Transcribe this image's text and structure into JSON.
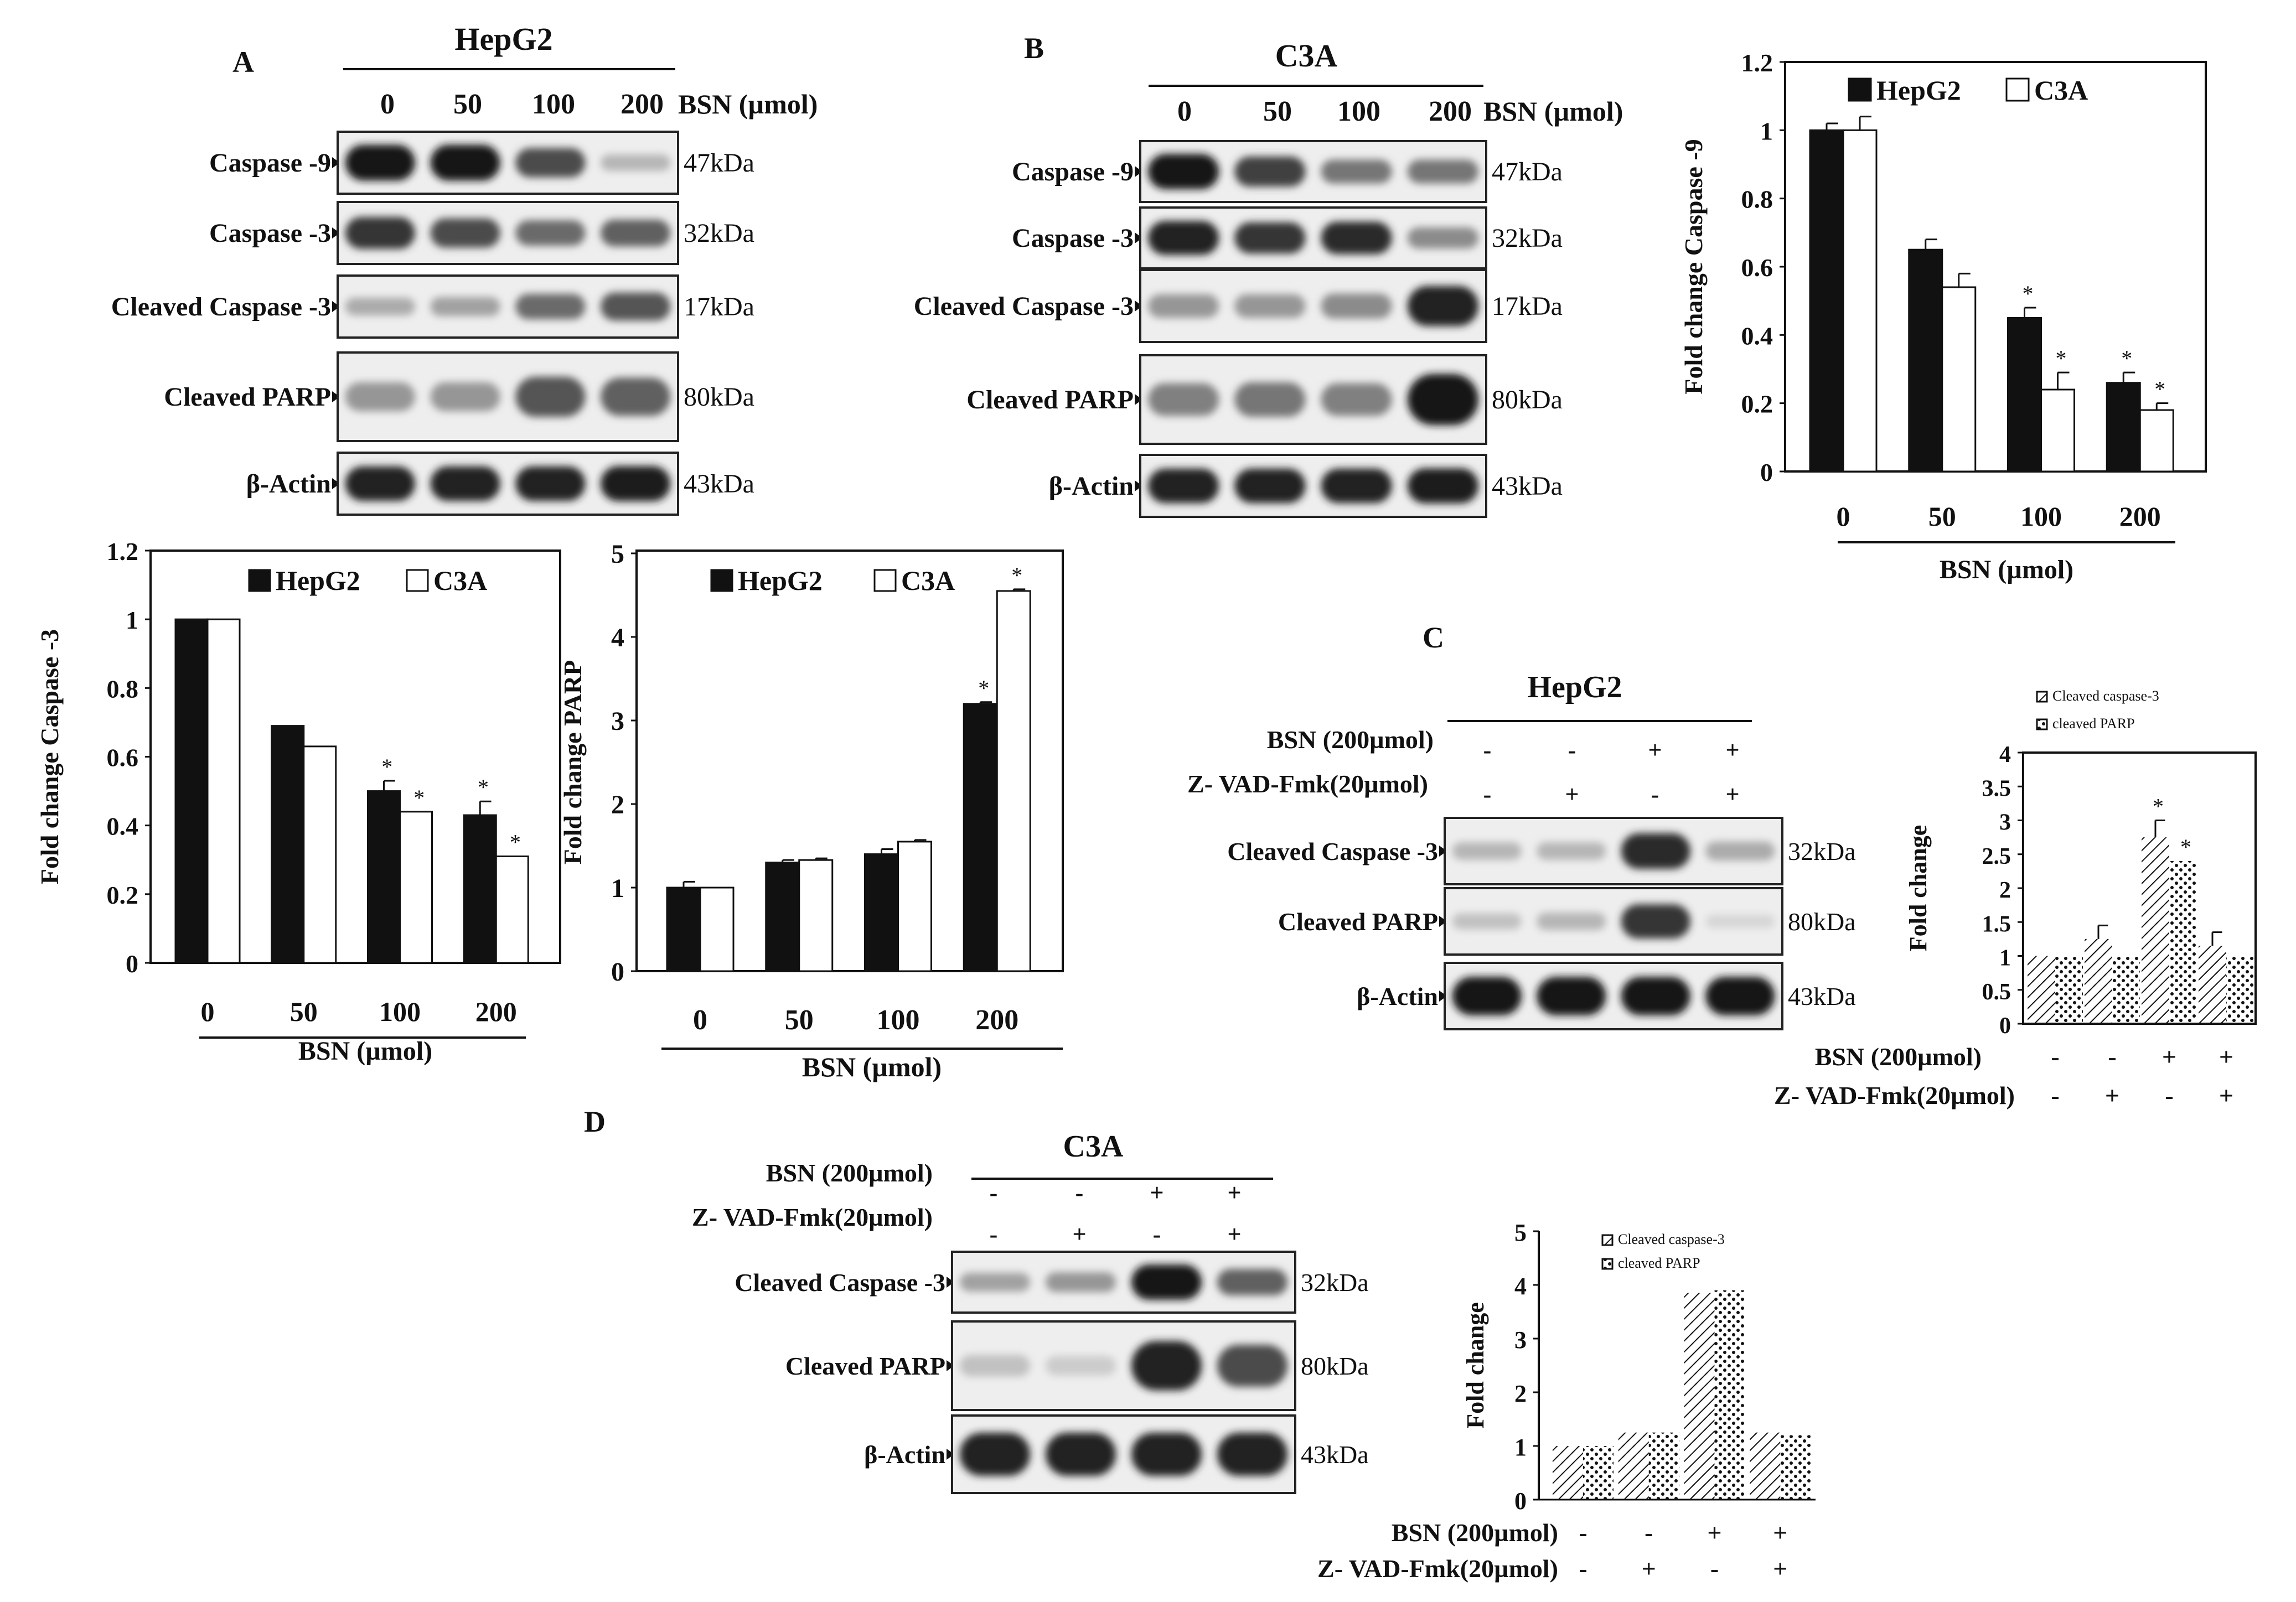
{
  "panels": {
    "A": {
      "letter": "A",
      "cell": "HepG2",
      "doses": [
        "0",
        "50",
        "100",
        "200"
      ],
      "dose_label": "BSN (µmol)",
      "blots": [
        {
          "label": "Caspase -9",
          "kda": "47kDa",
          "bands": [
            0.95,
            0.95,
            0.7,
            0.2
          ]
        },
        {
          "label": "Caspase -3",
          "kda": "32kDa",
          "bands": [
            0.8,
            0.7,
            0.55,
            0.6
          ]
        },
        {
          "label": "Cleaved Caspase -3",
          "kda": "17kDa",
          "bands": [
            0.25,
            0.3,
            0.55,
            0.65
          ]
        },
        {
          "label": "Cleaved PARP",
          "kda": "80kDa",
          "bands": [
            0.35,
            0.35,
            0.65,
            0.6
          ]
        },
        {
          "label": "β-Actin",
          "kda": "43kDa",
          "bands": [
            0.9,
            0.9,
            0.9,
            0.92
          ]
        }
      ]
    },
    "B": {
      "letter": "B",
      "cell": "C3A",
      "doses": [
        "0",
        "50",
        "100",
        "200"
      ],
      "dose_label": "BSN (µmol)",
      "blots": [
        {
          "label": "Caspase -9",
          "kda": "47kDa",
          "bands": [
            0.95,
            0.75,
            0.5,
            0.5
          ]
        },
        {
          "label": "Caspase -3",
          "kda": "32kDa",
          "bands": [
            0.9,
            0.8,
            0.85,
            0.4
          ]
        },
        {
          "label": "Cleaved Caspase -3",
          "kda": "17kDa",
          "bands": [
            0.35,
            0.35,
            0.4,
            0.9
          ]
        },
        {
          "label": "Cleaved PARP",
          "kda": "80kDa",
          "bands": [
            0.45,
            0.5,
            0.45,
            0.95
          ]
        },
        {
          "label": "β-Actin",
          "kda": "43kDa",
          "bands": [
            0.9,
            0.9,
            0.9,
            0.92
          ]
        }
      ]
    },
    "C": {
      "letter": "C",
      "cell": "HepG2",
      "treat_rows": [
        {
          "label": "BSN (200µmol)",
          "signs": [
            "-",
            "-",
            "+",
            "+"
          ]
        },
        {
          "label": "Z- VAD-Fmk(20µmol)",
          "signs": [
            "-",
            "+",
            "-",
            "+"
          ]
        }
      ],
      "blots": [
        {
          "label": "Cleaved Caspase -3",
          "kda": "32kDa",
          "bands": [
            0.2,
            0.2,
            0.85,
            0.25
          ]
        },
        {
          "label": "Cleaved PARP",
          "kda": "80kDa",
          "bands": [
            0.15,
            0.2,
            0.8,
            0.05
          ]
        },
        {
          "label": "β-Actin",
          "kda": "43kDa",
          "bands": [
            0.95,
            0.95,
            0.95,
            0.95
          ]
        }
      ]
    },
    "D": {
      "letter": "D",
      "cell": "C3A",
      "treat_rows": [
        {
          "label": "BSN (200µmol)",
          "signs": [
            "-",
            "-",
            "+",
            "+"
          ]
        },
        {
          "label": "Z- VAD-Fmk(20µmol)",
          "signs": [
            "-",
            "+",
            "-",
            "+"
          ]
        }
      ],
      "blots": [
        {
          "label": "Cleaved Caspase -3",
          "kda": "32kDa",
          "bands": [
            0.3,
            0.35,
            0.95,
            0.6
          ]
        },
        {
          "label": "Cleaved PARP",
          "kda": "80kDa",
          "bands": [
            0.15,
            0.1,
            0.9,
            0.7
          ]
        },
        {
          "label": "β-Actin",
          "kda": "43kDa",
          "bands": [
            0.9,
            0.9,
            0.9,
            0.9
          ]
        }
      ]
    }
  },
  "chart_data": [
    {
      "id": "casp9",
      "type": "bar",
      "categories": [
        "0",
        "50",
        "100",
        "200"
      ],
      "series": [
        {
          "name": "HepG2",
          "values": [
            1.0,
            0.65,
            0.45,
            0.26
          ],
          "errors": [
            0.02,
            0.03,
            0.03,
            0.03
          ],
          "sig": [
            false,
            false,
            true,
            true
          ]
        },
        {
          "name": "C3A",
          "values": [
            1.0,
            0.54,
            0.24,
            0.18
          ],
          "errors": [
            0.04,
            0.04,
            0.05,
            0.02
          ],
          "sig": [
            false,
            false,
            true,
            true
          ]
        }
      ],
      "ylabel": "Fold change Caspase -9",
      "xlabel": "BSN (µmol)",
      "ylim": [
        0,
        1.2
      ],
      "yticks": [
        "0",
        "0.2",
        "0.4",
        "0.6",
        "0.8",
        "1",
        "1.2"
      ],
      "legend": "top"
    },
    {
      "id": "casp3",
      "type": "bar",
      "categories": [
        "0",
        "50",
        "100",
        "200"
      ],
      "series": [
        {
          "name": "HepG2",
          "values": [
            1.0,
            0.69,
            0.5,
            0.43
          ],
          "errors": [
            0.0,
            0.0,
            0.03,
            0.04
          ],
          "sig": [
            false,
            false,
            true,
            true
          ]
        },
        {
          "name": "C3A",
          "values": [
            1.0,
            0.63,
            0.44,
            0.31
          ],
          "errors": [
            0.0,
            0.0,
            0.0,
            0.0
          ],
          "sig": [
            false,
            false,
            true,
            true
          ]
        }
      ],
      "ylabel": "Fold change Caspase -3",
      "xlabel": "BSN (µmol)",
      "ylim": [
        0,
        1.2
      ],
      "yticks": [
        "0",
        "0.2",
        "0.4",
        "0.6",
        "0.8",
        "1",
        "1.2"
      ],
      "legend": "top"
    },
    {
      "id": "parp",
      "type": "bar",
      "categories": [
        "0",
        "50",
        "100",
        "200"
      ],
      "series": [
        {
          "name": "HepG2",
          "values": [
            1.0,
            1.3,
            1.4,
            3.2
          ],
          "errors": [
            0.07,
            0.03,
            0.06,
            0.02
          ],
          "sig": [
            false,
            false,
            false,
            true
          ]
        },
        {
          "name": "C3A",
          "values": [
            1.0,
            1.33,
            1.55,
            4.55
          ],
          "errors": [
            0.0,
            0.02,
            0.02,
            0.02
          ],
          "sig": [
            false,
            false,
            false,
            true
          ]
        }
      ],
      "ylabel": "Fold change PARP",
      "xlabel": "BSN (µmol)",
      "ylim": [
        0,
        5
      ],
      "yticks": [
        "0",
        "1",
        "2",
        "3",
        "4",
        "5"
      ],
      "legend": "top"
    },
    {
      "id": "hepg2_zvad",
      "type": "bar",
      "categories": [
        "1",
        "2",
        "3",
        "4"
      ],
      "series": [
        {
          "name": "Cleaved caspase-3",
          "values": [
            1.0,
            1.25,
            2.75,
            1.15
          ],
          "errors": [
            0.0,
            0.2,
            0.25,
            0.2
          ],
          "sig": [
            false,
            false,
            true,
            false
          ]
        },
        {
          "name": "cleaved PARP",
          "values": [
            1.0,
            1.0,
            2.4,
            1.0
          ],
          "errors": [
            0.0,
            0.0,
            0.0,
            0.0
          ],
          "sig": [
            false,
            false,
            true,
            false
          ]
        }
      ],
      "ylabel": "Fold change",
      "ylim": [
        0,
        4
      ],
      "yticks": [
        "0",
        "0.5",
        "1",
        "1.5",
        "2",
        "2.5",
        "3",
        "3.5",
        "4"
      ],
      "treat_rows": [
        {
          "label": "BSN (200µmol)",
          "signs": [
            "-",
            "-",
            "+",
            "+"
          ]
        },
        {
          "label": "Z- VAD-Fmk(20µmol)",
          "signs": [
            "-",
            "+",
            "-",
            "+"
          ]
        }
      ],
      "legend": "top-inside"
    },
    {
      "id": "c3a_zvad",
      "type": "bar",
      "categories": [
        "1",
        "2",
        "3",
        "4"
      ],
      "series": [
        {
          "name": "Cleaved caspase-3",
          "values": [
            1.0,
            1.25,
            3.85,
            1.25
          ],
          "errors": [
            0.0,
            0.0,
            0.0,
            0.0
          ],
          "sig": [
            false,
            false,
            false,
            false
          ]
        },
        {
          "name": "cleaved PARP",
          "values": [
            1.0,
            1.25,
            3.9,
            1.2
          ],
          "errors": [
            0.0,
            0.0,
            0.0,
            0.0
          ],
          "sig": [
            false,
            false,
            false,
            false
          ]
        }
      ],
      "ylabel": "Fold change",
      "ylim": [
        0,
        5
      ],
      "yticks": [
        "0",
        "1",
        "2",
        "3",
        "4",
        "5"
      ],
      "treat_rows": [
        {
          "label": "BSN (200µmol)",
          "signs": [
            "-",
            "-",
            "+",
            "+"
          ]
        },
        {
          "label": "Z- VAD-Fmk(20µmol)",
          "signs": [
            "-",
            "+",
            "-",
            "+"
          ]
        }
      ],
      "legend": "top-inside"
    }
  ]
}
